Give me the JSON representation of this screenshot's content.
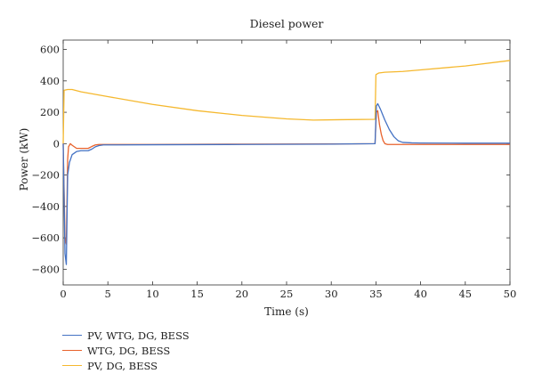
{
  "chart_data": {
    "type": "line",
    "title": "Diesel power",
    "xlabel": "Time (s)",
    "ylabel": "Power (kW)",
    "xlim": [
      0,
      50
    ],
    "ylim": [
      -900,
      660
    ],
    "xticks": [
      0,
      5,
      10,
      15,
      20,
      25,
      30,
      35,
      40,
      45,
      50
    ],
    "yticks": [
      -800,
      -600,
      -400,
      -200,
      0,
      200,
      400,
      600
    ],
    "grid": false,
    "legend_position": "below-left",
    "series": [
      {
        "name": "PV, WTG, DG, BESS",
        "color": "#4472c4",
        "x": [
          0,
          0.2,
          0.35,
          0.5,
          0.7,
          1.0,
          1.5,
          2.0,
          2.8,
          3.2,
          3.6,
          4.0,
          4.5,
          6,
          10,
          20,
          30,
          34.9,
          35.05,
          35.2,
          35.5,
          36,
          36.5,
          37,
          37.5,
          38,
          39,
          40,
          45,
          50
        ],
        "y": [
          0,
          -700,
          -770,
          -200,
          -120,
          -70,
          -50,
          -45,
          -45,
          -35,
          -20,
          -12,
          -8,
          -8,
          -7,
          -5,
          -3,
          0,
          240,
          255,
          220,
          150,
          90,
          45,
          18,
          8,
          5,
          4,
          3,
          3
        ]
      },
      {
        "name": "WTG, DG, BESS",
        "color": "#e8622c",
        "x": [
          0,
          0.2,
          0.35,
          0.5,
          0.6,
          0.8,
          1.0,
          1.5,
          2.0,
          2.8,
          3.2,
          3.6,
          4.0,
          4.5,
          6,
          10,
          20,
          30,
          34.9,
          35.05,
          35.2,
          35.4,
          35.6,
          35.8,
          36.0,
          36.3,
          37,
          40,
          45,
          50
        ],
        "y": [
          0,
          -600,
          -640,
          -100,
          -20,
          0,
          -10,
          -30,
          -30,
          -30,
          -18,
          -8,
          -5,
          -5,
          -5,
          -5,
          -3,
          -2,
          0,
          200,
          210,
          120,
          60,
          20,
          0,
          -5,
          -5,
          -5,
          -5,
          -5
        ]
      },
      {
        "name": "PV, DG, BESS",
        "color": "#f5b82e",
        "x": [
          0,
          0.1,
          0.5,
          1.0,
          2.0,
          5,
          10,
          15,
          20,
          25,
          28,
          30,
          34.9,
          35.0,
          35.3,
          36,
          38,
          40,
          45,
          50
        ],
        "y": [
          0,
          340,
          345,
          345,
          330,
          300,
          250,
          210,
          180,
          158,
          150,
          152,
          155,
          440,
          450,
          455,
          460,
          470,
          495,
          530
        ]
      }
    ]
  }
}
